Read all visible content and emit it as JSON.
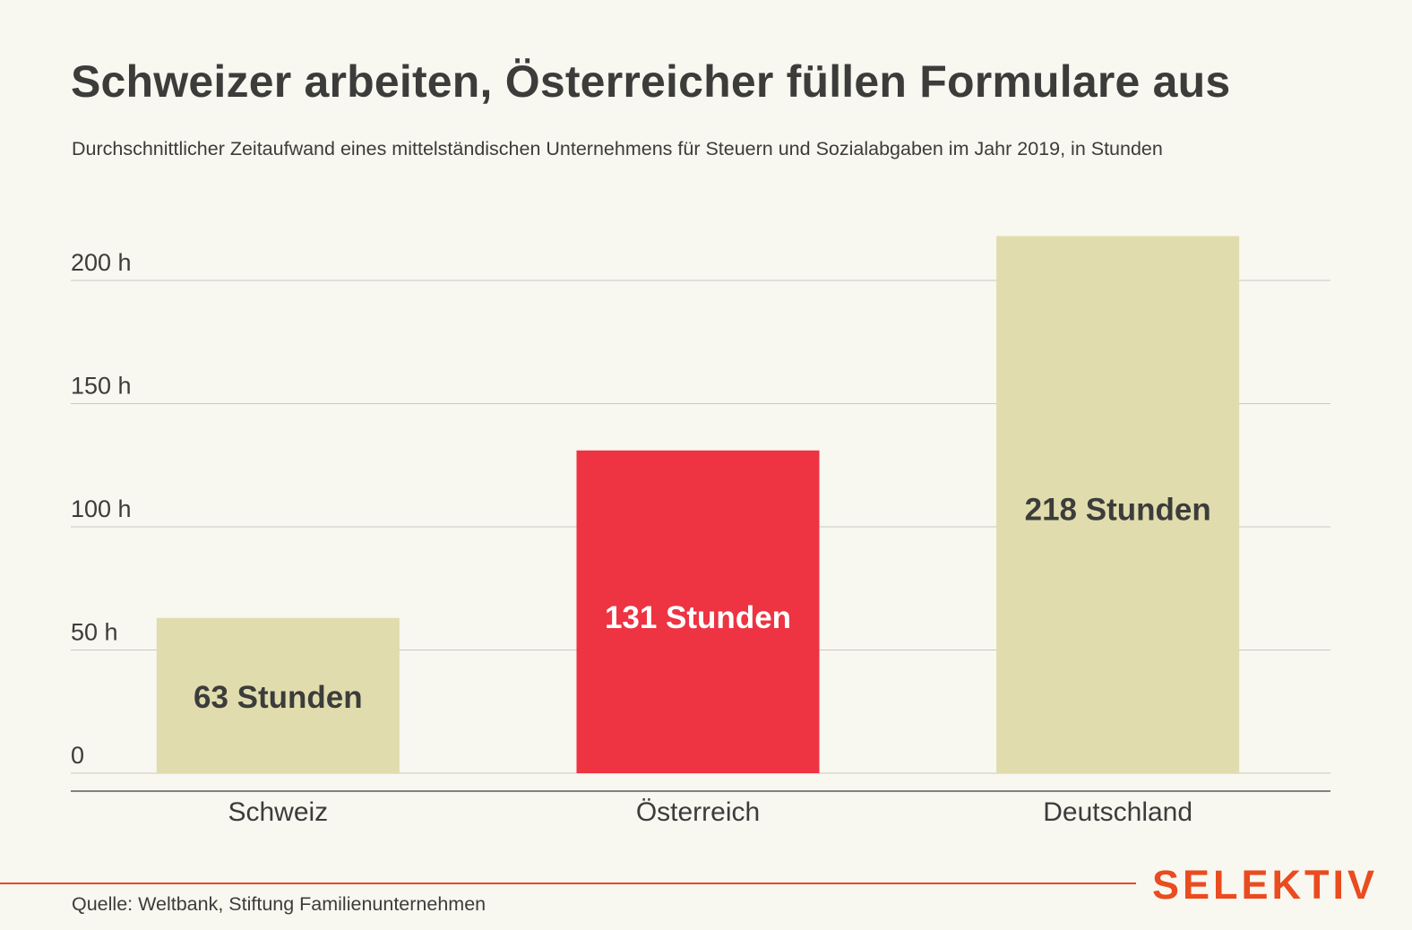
{
  "title": "Schweizer arbeiten, Österreicher füllen Formulare aus",
  "subtitle": "Durchschnittlicher Zeitaufwand eines mittelständischen Unternehmens für Steuern und Sozialabgaben im Jahr 2019, in Stunden",
  "source": "Quelle: Weltbank, Stiftung Familienunternehmen",
  "brand": "SELEKTIV",
  "colors": {
    "background": "#f8f7f0",
    "bar_default": "#e0dcad",
    "bar_highlight": "#ee3342",
    "gridline": "#c9c9c4",
    "text": "#3c3c3b",
    "brand": "#ea4b1f"
  },
  "chart_data": {
    "type": "bar",
    "title": "Schweizer arbeiten, Österreicher füllen Formulare aus",
    "subtitle": "Durchschnittlicher Zeitaufwand eines mittelständischen Unternehmens für Steuern und Sozialabgaben im Jahr 2019, in Stunden",
    "categories": [
      "Schweiz",
      "Österreich",
      "Deutschland"
    ],
    "values": [
      63,
      131,
      218
    ],
    "data_labels": [
      "63 Stunden",
      "131 Stunden",
      "218 Stunden"
    ],
    "highlight": "Österreich",
    "yticks": [
      0,
      50,
      100,
      150,
      200
    ],
    "ytick_labels": [
      "0",
      "50 h",
      "100 h",
      "150 h",
      "200 h"
    ],
    "ylim": [
      0,
      218
    ],
    "grid": true,
    "xlabel": "",
    "ylabel": ""
  }
}
